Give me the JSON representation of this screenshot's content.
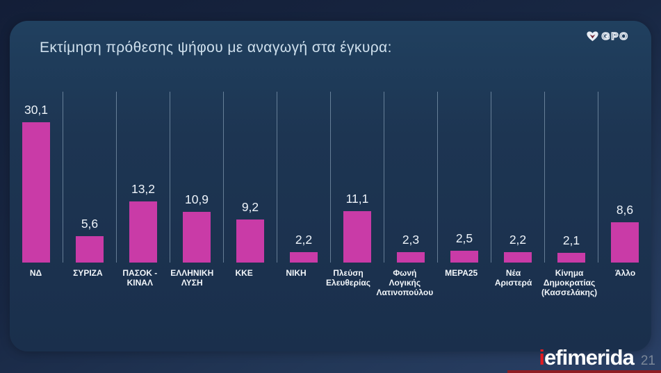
{
  "slide": {
    "title": "Εκτίμηση πρόθεσης ψήφου με αναγωγή στα έγκυρα:",
    "page_number": "21"
  },
  "branding": {
    "top_right_logo": "GPO",
    "bottom_right_logo_prefix": "i",
    "bottom_right_logo_rest": "efimerida"
  },
  "colors": {
    "bar": "#c93ba7",
    "card_background": "#1d3552",
    "outer_background": "#182743",
    "title_text": "#cfe0ed",
    "label_text": "#f2f6fa",
    "brand_red": "#e11b22",
    "footer_strip_red": "#8e1e24"
  },
  "chart_data": {
    "type": "bar",
    "title": "Εκτίμηση πρόθεσης ψήφου με αναγωγή στα έγκυρα:",
    "categories": [
      "ΝΔ",
      "ΣΥΡΙΖΑ",
      "ΠΑΣΟΚ - ΚΙΝΑΛ",
      "ΕΛΛΗΝΙΚΗ ΛΥΣΗ",
      "ΚΚΕ",
      "ΝΙΚΗ",
      "Πλεύση Ελευθερίας",
      "Φωνή Λογικής Λατινοπούλου",
      "ΜΕΡΑ25",
      "Νέα Αριστερά",
      "Κίνημα Δημοκρατίας (Κασσελάκης)",
      "Άλλο"
    ],
    "values": [
      30.1,
      5.6,
      13.2,
      10.9,
      9.2,
      2.2,
      11.1,
      2.3,
      2.5,
      2.2,
      2.1,
      8.6
    ],
    "display_values": [
      "30,1",
      "5,6",
      "13,2",
      "10,9",
      "9,2",
      "2,2",
      "11,1",
      "2,3",
      "2,5",
      "2,2",
      "2,1",
      "8,6"
    ],
    "xlabel": "",
    "ylabel": "",
    "ylim": [
      0,
      33
    ],
    "grid": "vertical-separators-only",
    "legend": "none",
    "data_labels": "above-bars, comma decimal separator"
  }
}
